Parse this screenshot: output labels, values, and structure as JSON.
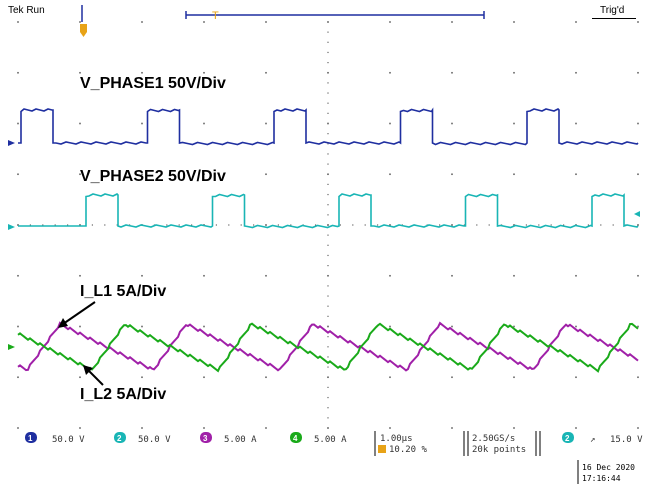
{
  "header": {
    "run_status": "Tek Run",
    "trigger_status": "Trig'd",
    "trigger_marker": "T"
  },
  "waveform_labels": {
    "phase1": "V_PHASE1 50V/Div",
    "phase2": "V_PHASE2 50V/Div",
    "il1": "I_L1 5A/Div",
    "il2": "I_L2 5A/Div"
  },
  "channels": [
    {
      "num": "1",
      "scale": "50.0 V",
      "color": "#1f2fa0"
    },
    {
      "num": "2",
      "scale": "50.0 V",
      "color": "#19b5b5"
    },
    {
      "num": "3",
      "scale": "5.00 A",
      "color": "#a020a8"
    },
    {
      "num": "4",
      "scale": "5.00 A",
      "color": "#1aaa1a"
    }
  ],
  "status_bar": {
    "timebase": "1.00µs",
    "trigger_pos": "10.20 %",
    "sample_rate": "2.50GS/s",
    "record_length": "20k points",
    "trigger_channel": "2",
    "trigger_slope": "↗",
    "trigger_level": "15.0 V",
    "date": "16 Dec 2020",
    "time": "17:16:44"
  },
  "colors": {
    "ch1": "#1f2fa0",
    "ch2": "#19b5b5",
    "ch3": "#a020a8",
    "ch4": "#1aaa1a",
    "trigger_marker": "#e8a317",
    "grid_dots": "#555555"
  }
}
